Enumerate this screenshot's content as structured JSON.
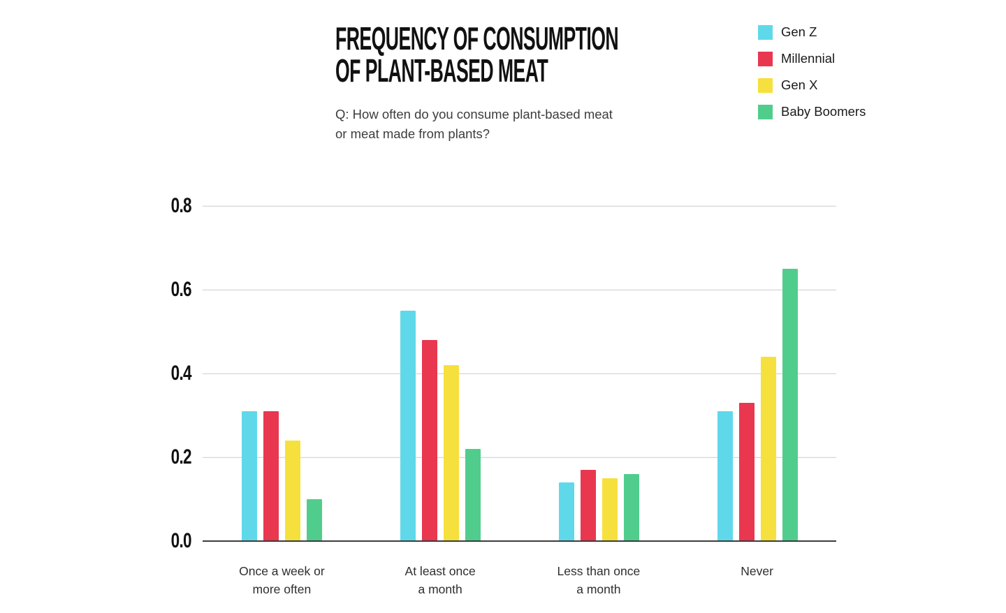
{
  "header": {
    "title_line1": "FREQUENCY OF CONSUMPTION",
    "title_line2": "OF PLANT-BASED MEAT",
    "subtitle_line1": "Q: How often do you consume plant-based meat",
    "subtitle_line2": "or meat made from plants?"
  },
  "legend": {
    "items": [
      {
        "label": "Gen Z",
        "color": "#5FD9EA"
      },
      {
        "label": "Millennial",
        "color": "#E8374F"
      },
      {
        "label": "Gen X",
        "color": "#F6E03E"
      },
      {
        "label": "Baby Boomers",
        "color": "#50CD8C"
      }
    ]
  },
  "chart_data": {
    "type": "bar",
    "title": "Frequency of Consumption of Plant-Based Meat",
    "subtitle": "Q: How often do you consume plant-based meat or meat made from plants?",
    "categories": [
      "Once a week or more often",
      "At least once a month",
      "Less than once a month",
      "Never"
    ],
    "categories_display": [
      [
        "Once a week or",
        "more often"
      ],
      [
        "At least once",
        "a month"
      ],
      [
        "Less than once",
        "a month"
      ],
      [
        "Never"
      ]
    ],
    "series": [
      {
        "name": "Gen Z",
        "color": "#5FD9EA",
        "values": [
          0.31,
          0.55,
          0.14,
          0.31
        ]
      },
      {
        "name": "Millennial",
        "color": "#E8374F",
        "values": [
          0.31,
          0.48,
          0.17,
          0.33
        ]
      },
      {
        "name": "Gen X",
        "color": "#F6E03E",
        "values": [
          0.24,
          0.42,
          0.15,
          0.44
        ]
      },
      {
        "name": "Baby Boomers",
        "color": "#50CD8C",
        "values": [
          0.1,
          0.22,
          0.16,
          0.65
        ]
      }
    ],
    "ylim": [
      0,
      0.8
    ],
    "yticks": [
      "0.0",
      "0.2",
      "0.4",
      "0.6",
      "0.8"
    ],
    "grid": true,
    "legend_position": "top-right"
  }
}
